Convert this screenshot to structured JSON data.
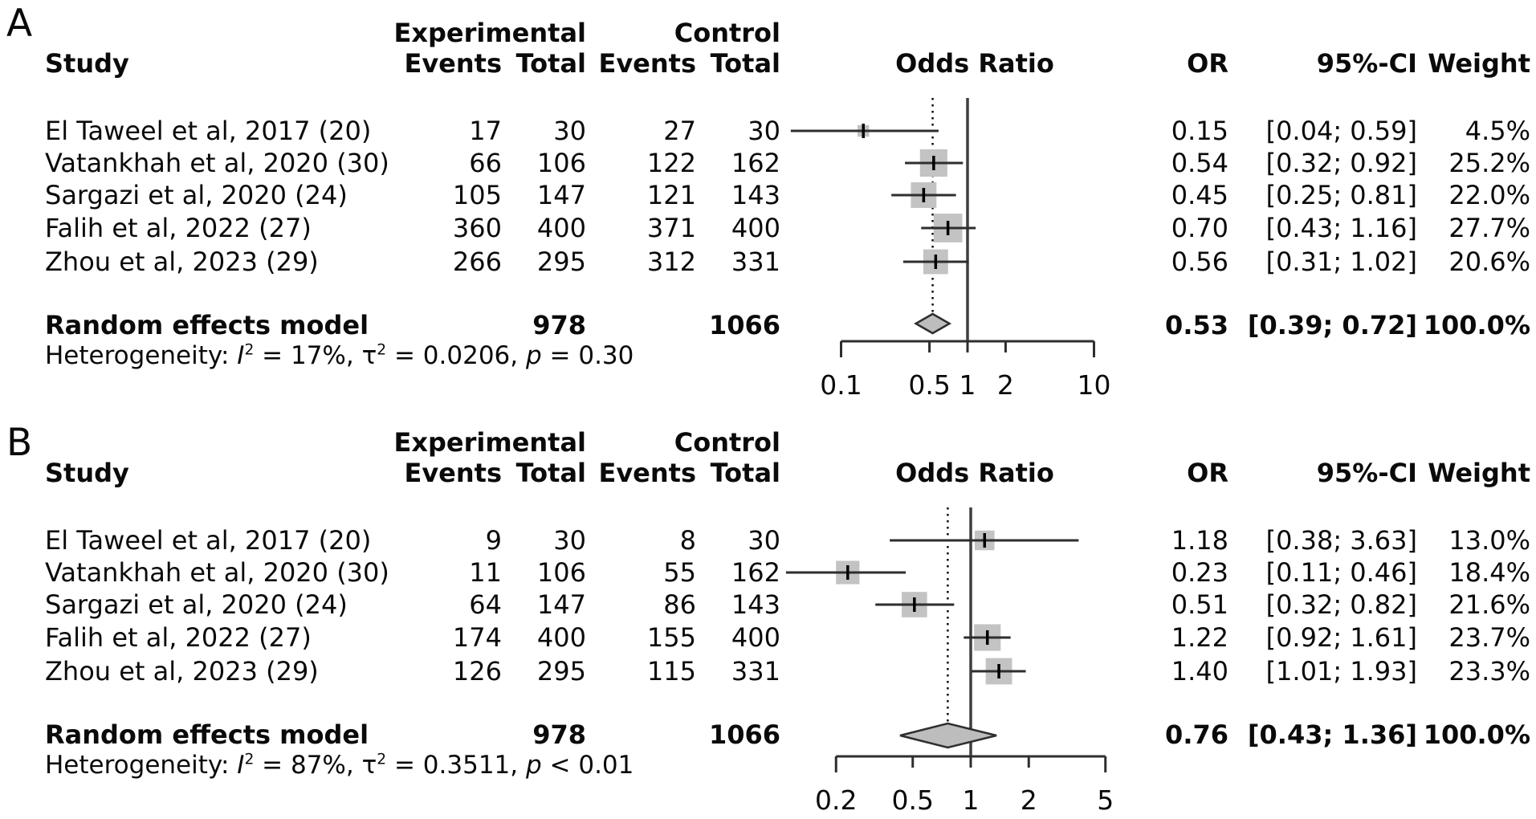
{
  "colors": {
    "square": "#c3c3c3",
    "diamond_fill": "#bdbdbd",
    "line": "#2e2e2e",
    "null_line": "#3f3f3f",
    "marker": "#000000",
    "text": "#0a0a0a"
  },
  "chart_data": [
    {
      "type": "forest",
      "panel": "A",
      "effect_measure": "Odds Ratio",
      "scale": "log",
      "legend_position": "none",
      "columns": {
        "study": "Study",
        "group1": "Experimental",
        "group2": "Control",
        "events": "Events",
        "total": "Total",
        "plot": "Odds Ratio",
        "or": "OR",
        "ci": "95%-CI",
        "weight": "Weight"
      },
      "studies": [
        {
          "name": "El Taweel et al, 2017 (20)",
          "exp_events": "17",
          "exp_total": "30",
          "ctrl_events": "27",
          "ctrl_total": "30",
          "or": 0.15,
          "ci_low": 0.04,
          "ci_high": 0.59,
          "or_text": "0.15",
          "ci_text": "[0.04; 0.59]",
          "weight": 4.5,
          "weight_text": "4.5%"
        },
        {
          "name": "Vatankhah et al, 2020 (30)",
          "exp_events": "66",
          "exp_total": "106",
          "ctrl_events": "122",
          "ctrl_total": "162",
          "or": 0.54,
          "ci_low": 0.32,
          "ci_high": 0.92,
          "or_text": "0.54",
          "ci_text": "[0.32; 0.92]",
          "weight": 25.2,
          "weight_text": "25.2%"
        },
        {
          "name": "Sargazi et al, 2020 (24)",
          "exp_events": "105",
          "exp_total": "147",
          "ctrl_events": "121",
          "ctrl_total": "143",
          "or": 0.45,
          "ci_low": 0.25,
          "ci_high": 0.81,
          "or_text": "0.45",
          "ci_text": "[0.25; 0.81]",
          "weight": 22.0,
          "weight_text": "22.0%"
        },
        {
          "name": "Falih et al, 2022 (27)",
          "exp_events": "360",
          "exp_total": "400",
          "ctrl_events": "371",
          "ctrl_total": "400",
          "or": 0.7,
          "ci_low": 0.43,
          "ci_high": 1.16,
          "or_text": "0.70",
          "ci_text": "[0.43; 1.16]",
          "weight": 27.7,
          "weight_text": "27.7%"
        },
        {
          "name": "Zhou et al, 2023 (29)",
          "exp_events": "266",
          "exp_total": "295",
          "ctrl_events": "312",
          "ctrl_total": "331",
          "or": 0.56,
          "ci_low": 0.31,
          "ci_high": 1.02,
          "or_text": "0.56",
          "ci_text": "[0.31; 1.02]",
          "weight": 20.6,
          "weight_text": "20.6%"
        }
      ],
      "summary": {
        "label": "Random effects model",
        "exp_total": "978",
        "ctrl_total": "1066",
        "or": 0.53,
        "ci_low": 0.39,
        "ci_high": 0.72,
        "or_text": "0.53",
        "ci_text": "[0.39; 0.72]",
        "weight_text": "100.0%"
      },
      "heterogeneity": {
        "label": "Heterogeneity:",
        "i_sym": "I",
        "sup": "2",
        "i2_text": "= 17%,",
        "tau_sym": "τ",
        "tau2_text": "= 0.0206,",
        "p_sym": "p",
        "p_text": "= 0.30"
      },
      "x_ticks": [
        0.1,
        0.5,
        1,
        2,
        10
      ],
      "x_tick_labels": [
        "0.1",
        "0.5",
        "1",
        "2",
        "10"
      ]
    },
    {
      "type": "forest",
      "panel": "B",
      "effect_measure": "Odds Ratio",
      "scale": "log",
      "legend_position": "none",
      "columns": {
        "study": "Study",
        "group1": "Experimental",
        "group2": "Control",
        "events": "Events",
        "total": "Total",
        "plot": "Odds Ratio",
        "or": "OR",
        "ci": "95%-CI",
        "weight": "Weight"
      },
      "studies": [
        {
          "name": "El Taweel et al, 2017 (20)",
          "exp_events": "9",
          "exp_total": "30",
          "ctrl_events": "8",
          "ctrl_total": "30",
          "or": 1.18,
          "ci_low": 0.38,
          "ci_high": 3.63,
          "or_text": "1.18",
          "ci_text": "[0.38; 3.63]",
          "weight": 13.0,
          "weight_text": "13.0%"
        },
        {
          "name": "Vatankhah et al, 2020 (30)",
          "exp_events": "11",
          "exp_total": "106",
          "ctrl_events": "55",
          "ctrl_total": "162",
          "or": 0.23,
          "ci_low": 0.11,
          "ci_high": 0.46,
          "or_text": "0.23",
          "ci_text": "[0.11; 0.46]",
          "weight": 18.4,
          "weight_text": "18.4%"
        },
        {
          "name": "Sargazi et al, 2020 (24)",
          "exp_events": "64",
          "exp_total": "147",
          "ctrl_events": "86",
          "ctrl_total": "143",
          "or": 0.51,
          "ci_low": 0.32,
          "ci_high": 0.82,
          "or_text": "0.51",
          "ci_text": "[0.32; 0.82]",
          "weight": 21.6,
          "weight_text": "21.6%"
        },
        {
          "name": "Falih et al, 2022 (27)",
          "exp_events": "174",
          "exp_total": "400",
          "ctrl_events": "155",
          "ctrl_total": "400",
          "or": 1.22,
          "ci_low": 0.92,
          "ci_high": 1.61,
          "or_text": "1.22",
          "ci_text": "[0.92; 1.61]",
          "weight": 23.7,
          "weight_text": "23.7%"
        },
        {
          "name": "Zhou et al, 2023 (29)",
          "exp_events": "126",
          "exp_total": "295",
          "ctrl_events": "115",
          "ctrl_total": "331",
          "or": 1.4,
          "ci_low": 1.01,
          "ci_high": 1.93,
          "or_text": "1.40",
          "ci_text": "[1.01; 1.93]",
          "weight": 23.3,
          "weight_text": "23.3%"
        }
      ],
      "summary": {
        "label": "Random effects model",
        "exp_total": "978",
        "ctrl_total": "1066",
        "or": 0.76,
        "ci_low": 0.43,
        "ci_high": 1.36,
        "or_text": "0.76",
        "ci_text": "[0.43; 1.36]",
        "weight_text": "100.0%"
      },
      "heterogeneity": {
        "label": "Heterogeneity:",
        "i_sym": "I",
        "sup": "2",
        "i2_text": "= 87%,",
        "tau_sym": "τ",
        "tau2_text": "= 0.3511,",
        "p_sym": "p",
        "p_text": "< 0.01"
      },
      "x_ticks": [
        0.2,
        0.5,
        1,
        2,
        5
      ],
      "x_tick_labels": [
        "0.2",
        "0.5",
        "1",
        "2",
        "5"
      ]
    }
  ]
}
